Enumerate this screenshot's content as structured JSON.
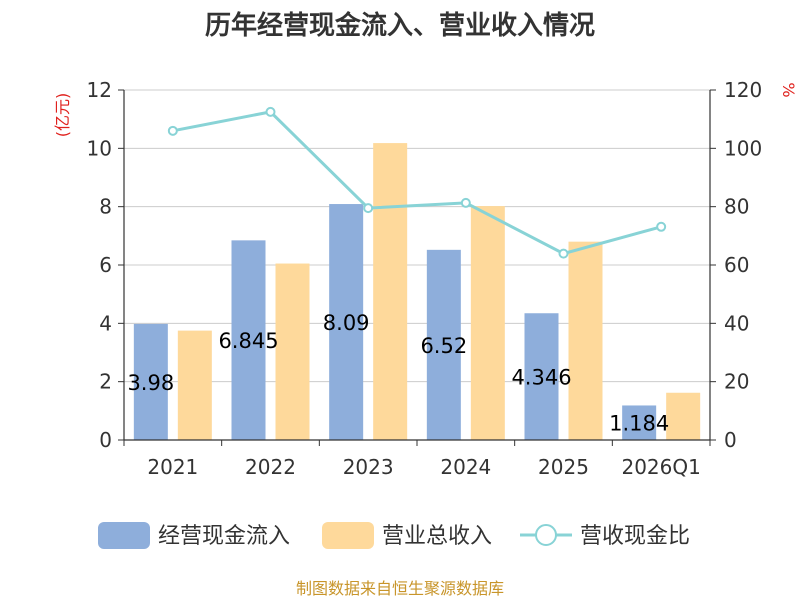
{
  "chart_data": {
    "type": "bar",
    "title": "历年经营现金流入、营业收入情况",
    "categories": [
      "2021",
      "2022",
      "2023",
      "2024",
      "2025",
      "2026Q1"
    ],
    "series": [
      {
        "name": "经营现金流入",
        "type": "bar",
        "axis": "left",
        "color": "#8eaedb",
        "values": [
          3.98,
          6.845,
          8.09,
          6.52,
          4.346,
          1.184
        ],
        "labels": [
          "3.98",
          "6.845",
          "8.09",
          "6.52",
          "4.346",
          "1.184"
        ]
      },
      {
        "name": "营业总收入",
        "type": "bar",
        "axis": "left",
        "color": "#fed99b",
        "values": [
          3.75,
          6.05,
          10.18,
          8.02,
          6.8,
          1.62
        ]
      },
      {
        "name": "营收现金比",
        "type": "line",
        "axis": "right",
        "color": "#88d3d6",
        "values": [
          106,
          112.5,
          79.5,
          81.3,
          63.9,
          73.1
        ]
      }
    ],
    "y_left": {
      "unit": "(亿元)",
      "min": 0,
      "max": 12,
      "ticks": [
        "0",
        "2",
        "4",
        "6",
        "8",
        "10",
        "12"
      ]
    },
    "y_right": {
      "unit": "%",
      "min": 0,
      "max": 120,
      "ticks": [
        "0",
        "20",
        "40",
        "60",
        "80",
        "100",
        "120"
      ]
    },
    "grid": true,
    "legend": "bottom"
  },
  "source": "制图数据来自恒生聚源数据库"
}
